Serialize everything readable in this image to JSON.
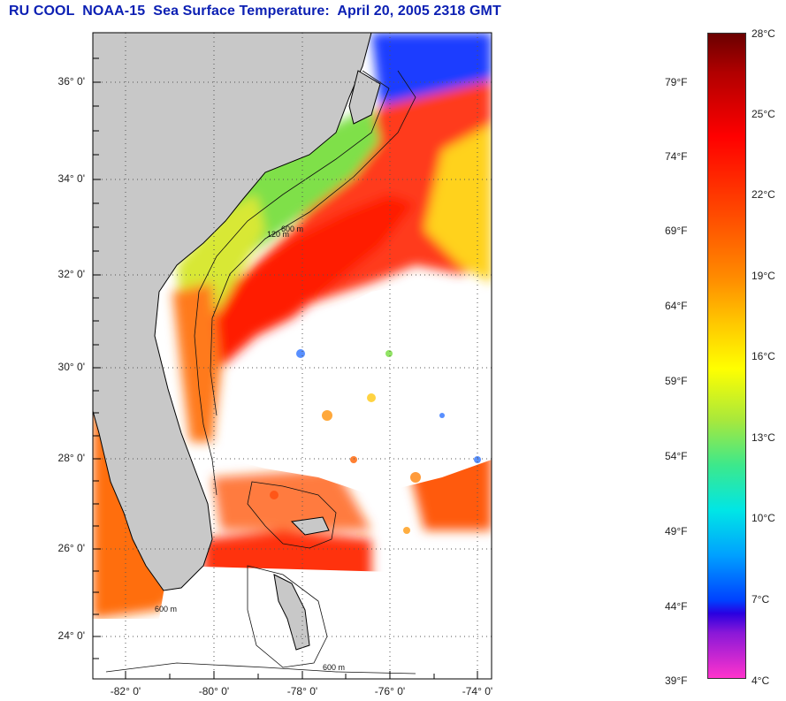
{
  "title": "RU COOL  NOAA-15  Sea Surface Temperature:  April 20, 2005 2318 GMT",
  "map": {
    "type": "sea-surface-temperature",
    "extent": {
      "lon": [
        -83.0,
        -73.9
      ],
      "lat": [
        23.0,
        37.1
      ]
    },
    "grid": "dotted",
    "lat_ticks": [
      "36° 0'",
      "34° 0'",
      "32° 0'",
      "30° 0'",
      "28° 0'",
      "26° 0'",
      "24° 0'"
    ],
    "lon_ticks": [
      "-82° 0'",
      "-80° 0'",
      "-78° 0'",
      "-76° 0'",
      "-74° 0'"
    ],
    "contour_labels": [
      "600 m",
      "120 m",
      "600 m",
      "600 m"
    ],
    "colors": {
      "land": "#c8c8c8",
      "cloud": "#ffffff",
      "coast": "#000000"
    }
  },
  "colorbar": {
    "fahrenheit_labels": [
      "79°F",
      "74°F",
      "69°F",
      "64°F",
      "59°F",
      "54°F",
      "49°F",
      "44°F",
      "39°F"
    ],
    "celsius_labels": [
      "28°C",
      "25°C",
      "22°C",
      "19°C",
      "16°C",
      "13°C",
      "10°C",
      "7°C",
      "4°C"
    ],
    "range_c": [
      4,
      28
    ]
  }
}
